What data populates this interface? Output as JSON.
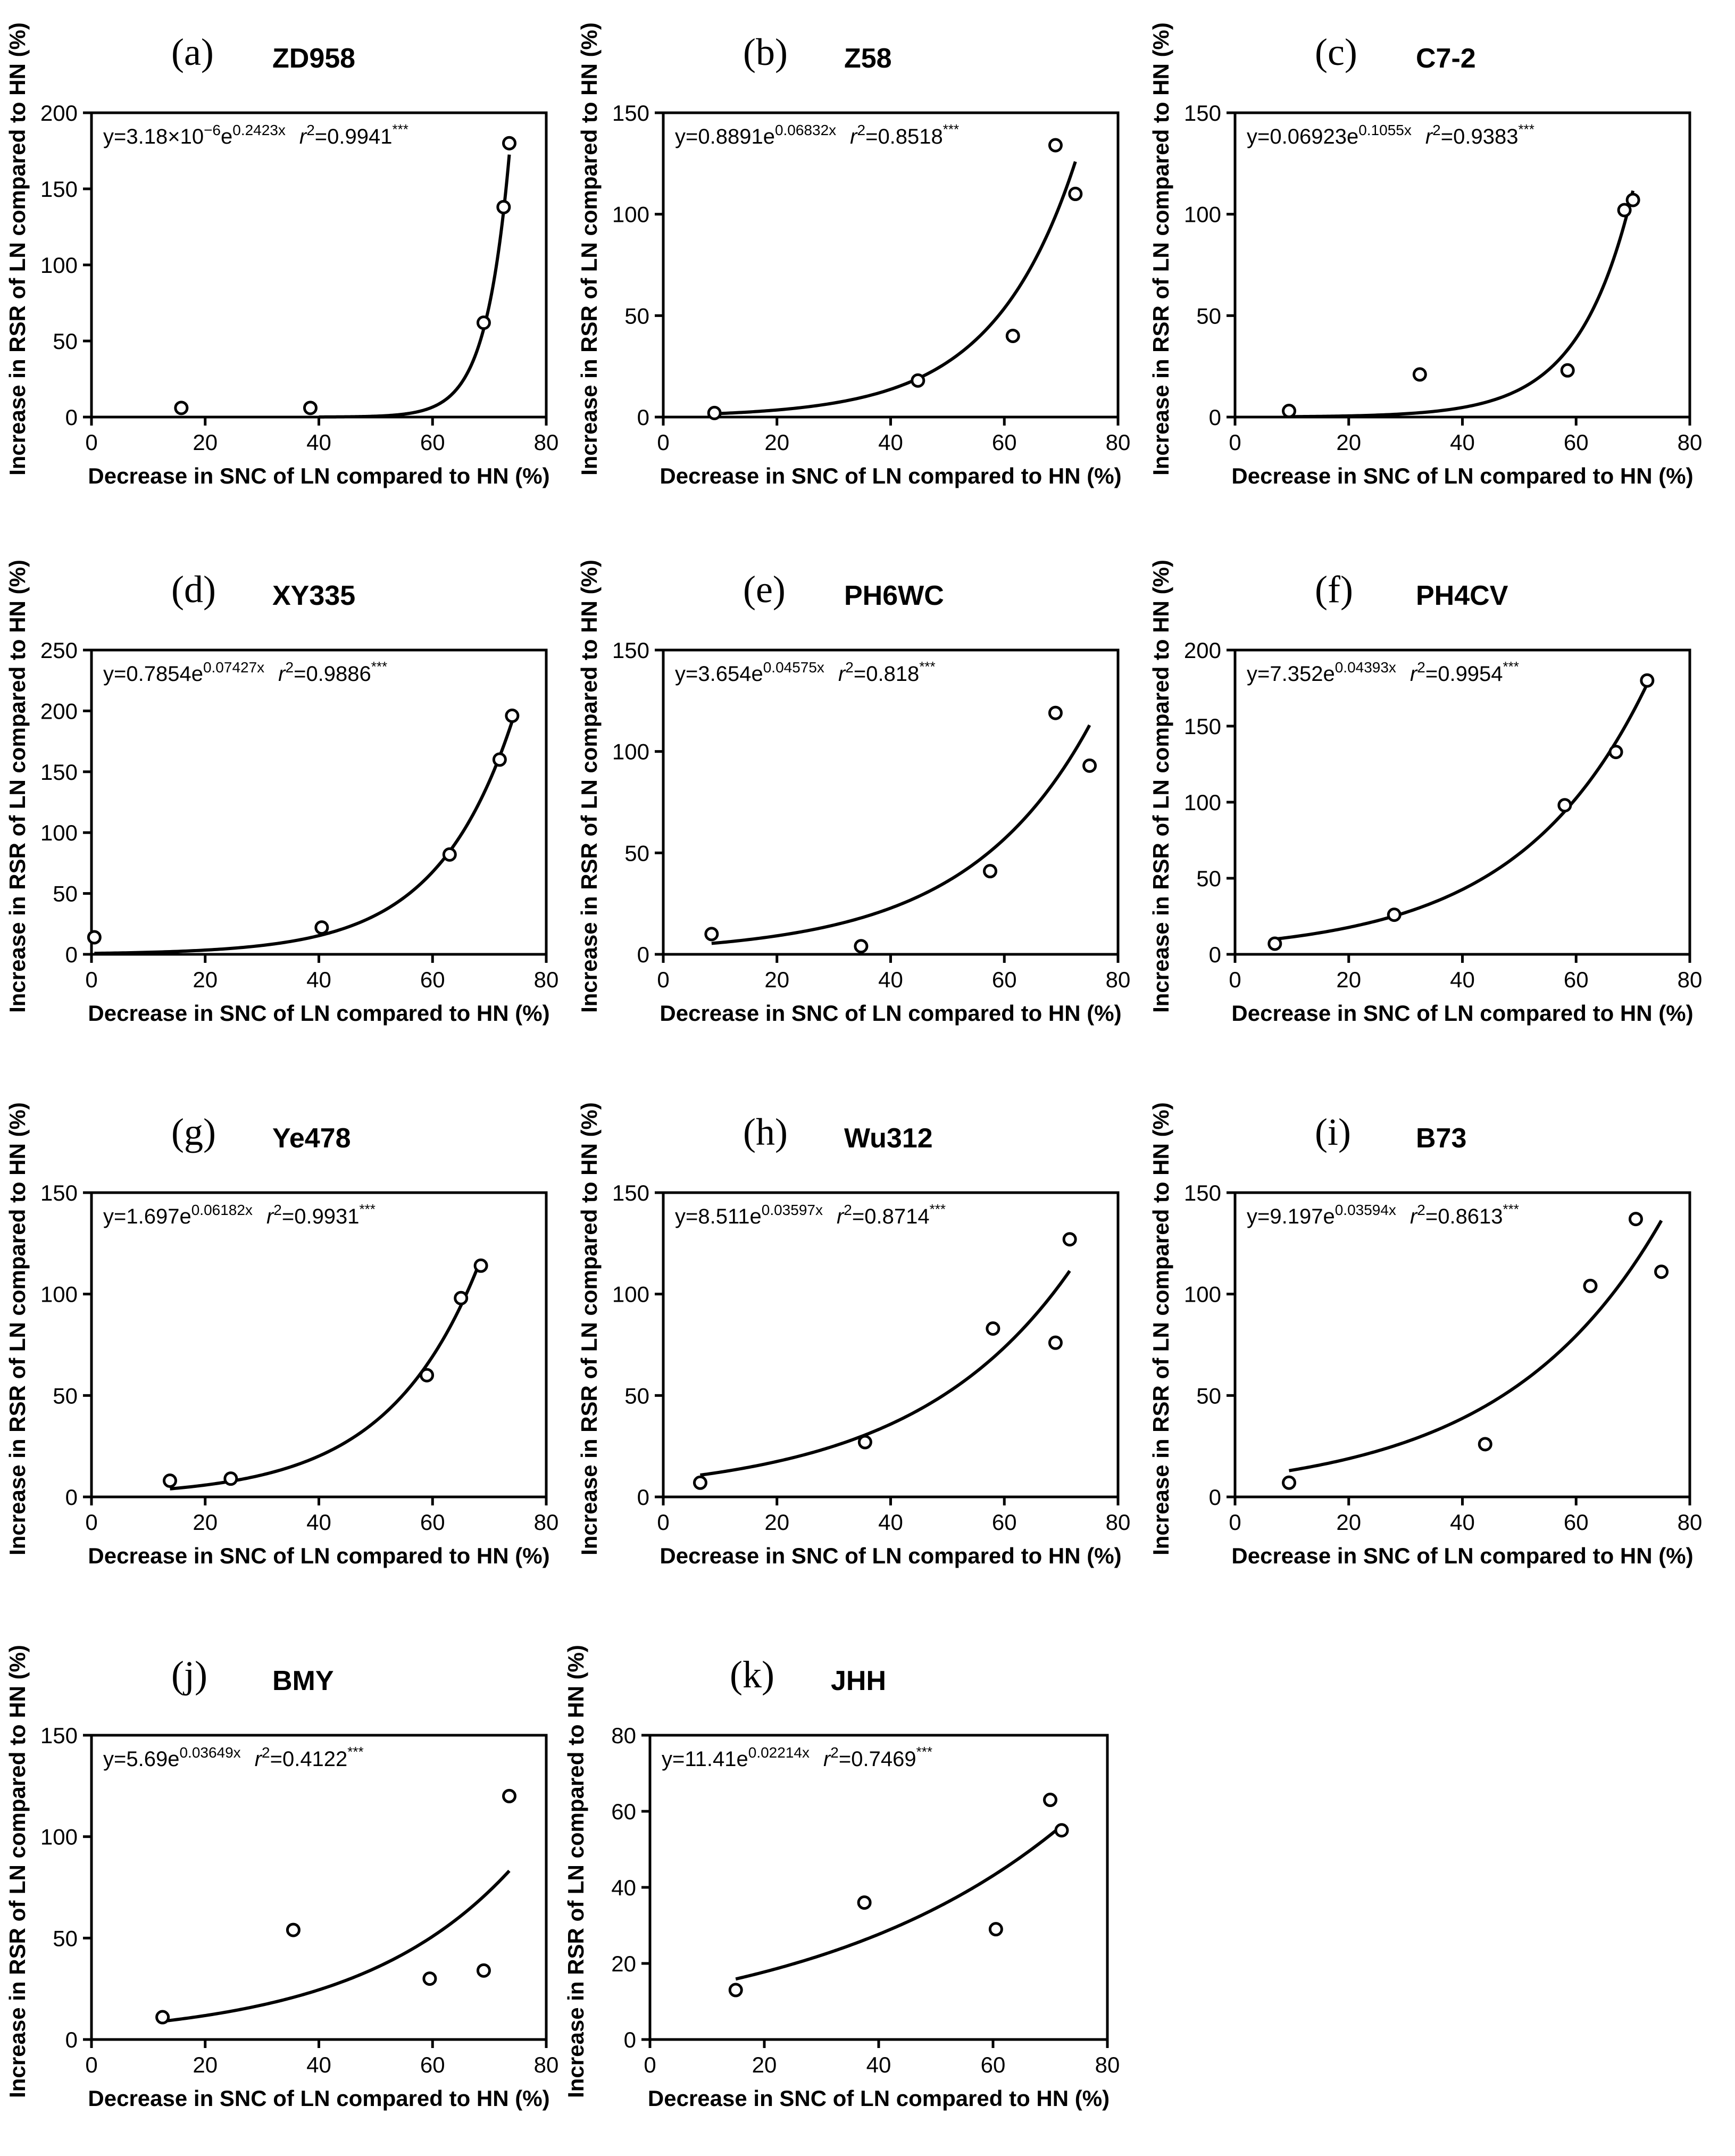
{
  "chart_data": [
    {
      "type": "scatter",
      "panel_label": "(a)",
      "title": "ZD958",
      "xlabel": "Decrease in SNC of LN compared to HN (%)",
      "ylabel": "Increase in RSR of LN compared to HN (%)",
      "xlim": [
        0,
        80
      ],
      "ylim": [
        0,
        200
      ],
      "xticks": [
        0,
        20,
        40,
        60,
        80
      ],
      "yticks": [
        0,
        50,
        100,
        150,
        200
      ],
      "points": [
        {
          "x": 15.8,
          "y": 6
        },
        {
          "x": 38.5,
          "y": 6
        },
        {
          "x": 69.0,
          "y": 62
        },
        {
          "x": 72.5,
          "y": 138
        },
        {
          "x": 73.5,
          "y": 180
        }
      ],
      "fit": {
        "a": 3.18e-06,
        "b": 0.2423,
        "x_range": [
          40,
          73.5
        ]
      },
      "equation_parts": {
        "lhs": "y=",
        "coef_base": "3.18×10",
        "coef_exp": "−6",
        "e": "e",
        "rate_exp": "0.2423x",
        "r": "r",
        "r_exp": "2",
        "r_value": "=0.9941",
        "sig": "***"
      }
    },
    {
      "type": "scatter",
      "panel_label": "(b)",
      "title": "Z58",
      "xlabel": "Decrease in SNC of LN compared to HN (%)",
      "ylabel": "Increase in RSR of LN compared to HN (%)",
      "xlim": [
        0,
        80
      ],
      "ylim": [
        0,
        150
      ],
      "xticks": [
        0,
        20,
        40,
        60,
        80
      ],
      "yticks": [
        0,
        50,
        100,
        150
      ],
      "points": [
        {
          "x": 9.0,
          "y": 2
        },
        {
          "x": 44.8,
          "y": 18
        },
        {
          "x": 61.5,
          "y": 40
        },
        {
          "x": 69.0,
          "y": 134
        },
        {
          "x": 72.5,
          "y": 110
        }
      ],
      "fit": {
        "a": 0.8891,
        "b": 0.06832,
        "x_range": [
          9.0,
          72.5
        ]
      },
      "equation_parts": {
        "lhs": "y=0.8891",
        "coef_base": "",
        "coef_exp": "",
        "e": "e",
        "rate_exp": "0.06832x",
        "r": "r",
        "r_exp": "2",
        "r_value": "=0.8518",
        "sig": "***"
      }
    },
    {
      "type": "scatter",
      "panel_label": "(c)",
      "title": "C7-2",
      "xlabel": "Decrease in SNC of LN compared to HN (%)",
      "ylabel": "Increase in RSR of LN compared to HN (%)",
      "xlim": [
        0,
        80
      ],
      "ylim": [
        0,
        150
      ],
      "xticks": [
        0,
        20,
        40,
        60,
        80
      ],
      "yticks": [
        0,
        50,
        100,
        150
      ],
      "points": [
        {
          "x": 9.5,
          "y": 3
        },
        {
          "x": 32.5,
          "y": 21
        },
        {
          "x": 58.5,
          "y": 23
        },
        {
          "x": 68.5,
          "y": 102
        },
        {
          "x": 70.0,
          "y": 107
        }
      ],
      "fit": {
        "a": 0.06923,
        "b": 0.1055,
        "x_range": [
          9.5,
          70.0
        ]
      },
      "equation_parts": {
        "lhs": "y=0.06923",
        "coef_base": "",
        "coef_exp": "",
        "e": "e",
        "rate_exp": "0.1055x",
        "r": "r",
        "r_exp": "2",
        "r_value": "=0.9383",
        "sig": "***"
      }
    },
    {
      "type": "scatter",
      "panel_label": "(d)",
      "title": "XY335",
      "xlabel": "Decrease in SNC of LN compared to HN (%)",
      "ylabel": "Increase in RSR of LN compared to HN (%)",
      "xlim": [
        0,
        80
      ],
      "ylim": [
        0,
        250
      ],
      "xticks": [
        0,
        20,
        40,
        60,
        80
      ],
      "yticks": [
        0,
        50,
        100,
        150,
        200,
        250
      ],
      "points": [
        {
          "x": 0.5,
          "y": 14
        },
        {
          "x": 40.5,
          "y": 22
        },
        {
          "x": 63.0,
          "y": 82
        },
        {
          "x": 71.8,
          "y": 160
        },
        {
          "x": 74.0,
          "y": 196
        }
      ],
      "fit": {
        "a": 0.7854,
        "b": 0.07427,
        "x_range": [
          0.5,
          74.0
        ]
      },
      "equation_parts": {
        "lhs": "y=0.7854",
        "coef_base": "",
        "coef_exp": "",
        "e": "e",
        "rate_exp": "0.07427x",
        "r": "r",
        "r_exp": "2",
        "r_value": "=0.9886",
        "sig": "***"
      }
    },
    {
      "type": "scatter",
      "panel_label": "(e)",
      "title": "PH6WC",
      "xlabel": "Decrease in SNC of LN compared to HN (%)",
      "ylabel": "Increase in RSR of LN compared to HN (%)",
      "xlim": [
        0,
        80
      ],
      "ylim": [
        0,
        150
      ],
      "xticks": [
        0,
        20,
        40,
        60,
        80
      ],
      "yticks": [
        0,
        50,
        100,
        150
      ],
      "points": [
        {
          "x": 8.5,
          "y": 10
        },
        {
          "x": 34.8,
          "y": 4
        },
        {
          "x": 57.5,
          "y": 41
        },
        {
          "x": 69.0,
          "y": 119
        },
        {
          "x": 75.0,
          "y": 93
        }
      ],
      "fit": {
        "a": 3.654,
        "b": 0.04575,
        "x_range": [
          8.5,
          75.0
        ]
      },
      "equation_parts": {
        "lhs": "y=3.654",
        "coef_base": "",
        "coef_exp": "",
        "e": "e",
        "rate_exp": "0.04575x",
        "r": "r",
        "r_exp": "2",
        "r_value": "=0.818",
        "sig": "***"
      }
    },
    {
      "type": "scatter",
      "panel_label": "(f)",
      "title": "PH4CV",
      "xlabel": "Decrease in SNC of LN compared to HN (%)",
      "ylabel": "Increase in RSR of LN compared to HN (%)",
      "xlim": [
        0,
        80
      ],
      "ylim": [
        0,
        200
      ],
      "xticks": [
        0,
        20,
        40,
        60,
        80
      ],
      "yticks": [
        0,
        50,
        100,
        150,
        200
      ],
      "points": [
        {
          "x": 7.0,
          "y": 7
        },
        {
          "x": 28.0,
          "y": 26
        },
        {
          "x": 58.0,
          "y": 98
        },
        {
          "x": 67.0,
          "y": 133
        },
        {
          "x": 72.5,
          "y": 180
        }
      ],
      "fit": {
        "a": 7.352,
        "b": 0.04393,
        "x_range": [
          7.0,
          72.5
        ]
      },
      "equation_parts": {
        "lhs": "y=7.352",
        "coef_base": "",
        "coef_exp": "",
        "e": "e",
        "rate_exp": "0.04393x",
        "r": "r",
        "r_exp": "2",
        "r_value": "=0.9954",
        "sig": "***"
      }
    },
    {
      "type": "scatter",
      "panel_label": "(g)",
      "title": "Ye478",
      "xlabel": "Decrease in SNC of LN compared to HN (%)",
      "ylabel": "Increase in RSR of LN compared to HN (%)",
      "xlim": [
        0,
        80
      ],
      "ylim": [
        0,
        150
      ],
      "xticks": [
        0,
        20,
        40,
        60,
        80
      ],
      "yticks": [
        0,
        50,
        100,
        150
      ],
      "points": [
        {
          "x": 13.8,
          "y": 8
        },
        {
          "x": 24.5,
          "y": 9
        },
        {
          "x": 59.0,
          "y": 60
        },
        {
          "x": 65.0,
          "y": 98
        },
        {
          "x": 68.5,
          "y": 114
        }
      ],
      "fit": {
        "a": 1.697,
        "b": 0.06182,
        "x_range": [
          13.8,
          68.5
        ]
      },
      "equation_parts": {
        "lhs": "y=1.697",
        "coef_base": "",
        "coef_exp": "",
        "e": "e",
        "rate_exp": "0.06182x",
        "r": "r",
        "r_exp": "2",
        "r_value": "=0.9931",
        "sig": "***"
      }
    },
    {
      "type": "scatter",
      "panel_label": "(h)",
      "title": "Wu312",
      "xlabel": "Decrease in SNC of LN compared to HN (%)",
      "ylabel": "Increase in RSR of LN compared to HN (%)",
      "xlim": [
        0,
        80
      ],
      "ylim": [
        0,
        150
      ],
      "xticks": [
        0,
        20,
        40,
        60,
        80
      ],
      "yticks": [
        0,
        50,
        100,
        150
      ],
      "points": [
        {
          "x": 6.5,
          "y": 7
        },
        {
          "x": 35.5,
          "y": 27
        },
        {
          "x": 58.0,
          "y": 83
        },
        {
          "x": 69.0,
          "y": 76
        },
        {
          "x": 71.5,
          "y": 127
        }
      ],
      "fit": {
        "a": 8.511,
        "b": 0.03597,
        "x_range": [
          6.5,
          71.5
        ]
      },
      "equation_parts": {
        "lhs": "y=8.511",
        "coef_base": "",
        "coef_exp": "",
        "e": "e",
        "rate_exp": "0.03597x",
        "r": "r",
        "r_exp": "2",
        "r_value": "=0.8714",
        "sig": "***"
      }
    },
    {
      "type": "scatter",
      "panel_label": "(i)",
      "title": "B73",
      "xlabel": "Decrease in SNC of LN compared to HN (%)",
      "ylabel": "Increase in RSR of LN compared to HN (%)",
      "xlim": [
        0,
        80
      ],
      "ylim": [
        0,
        150
      ],
      "xticks": [
        0,
        20,
        40,
        60,
        80
      ],
      "yticks": [
        0,
        50,
        100,
        150
      ],
      "points": [
        {
          "x": 9.5,
          "y": 7
        },
        {
          "x": 44.0,
          "y": 26
        },
        {
          "x": 62.5,
          "y": 104
        },
        {
          "x": 70.5,
          "y": 137
        },
        {
          "x": 75.0,
          "y": 111
        }
      ],
      "fit": {
        "a": 9.197,
        "b": 0.03594,
        "x_range": [
          9.5,
          75.0
        ]
      },
      "equation_parts": {
        "lhs": "y=9.197",
        "coef_base": "",
        "coef_exp": "",
        "e": "e",
        "rate_exp": "0.03594x",
        "r": "r",
        "r_exp": "2",
        "r_value": "=0.8613",
        "sig": "***"
      }
    },
    {
      "type": "scatter",
      "panel_label": "(j)",
      "title": "BMY",
      "xlabel": "Decrease in SNC of LN compared to HN (%)",
      "ylabel": "Increase in RSR of LN compared to HN (%)",
      "xlim": [
        0,
        80
      ],
      "ylim": [
        0,
        150
      ],
      "xticks": [
        0,
        20,
        40,
        60,
        80
      ],
      "yticks": [
        0,
        50,
        100,
        150
      ],
      "points": [
        {
          "x": 12.5,
          "y": 11
        },
        {
          "x": 35.5,
          "y": 54
        },
        {
          "x": 59.5,
          "y": 30
        },
        {
          "x": 69.0,
          "y": 34
        },
        {
          "x": 73.5,
          "y": 120
        }
      ],
      "fit": {
        "a": 5.69,
        "b": 0.03649,
        "x_range": [
          12.5,
          73.5
        ]
      },
      "equation_parts": {
        "lhs": "y=5.69",
        "coef_base": "",
        "coef_exp": "",
        "e": "e",
        "rate_exp": "0.03649x",
        "r": "r",
        "r_exp": "2",
        "r_value": "=0.4122",
        "sig": "***"
      }
    },
    {
      "type": "scatter",
      "panel_label": "(k)",
      "title": "JHH",
      "xlabel": "Decrease in SNC of LN compared to HN (%)",
      "ylabel": "Increase in RSR of LN compared to HN (%)",
      "xlim": [
        0,
        80
      ],
      "ylim": [
        0,
        80
      ],
      "xticks": [
        0,
        20,
        40,
        60,
        80
      ],
      "yticks": [
        0,
        20,
        40,
        60,
        80
      ],
      "points": [
        {
          "x": 15.0,
          "y": 13
        },
        {
          "x": 37.5,
          "y": 36
        },
        {
          "x": 60.5,
          "y": 29
        },
        {
          "x": 70.0,
          "y": 63
        },
        {
          "x": 72.0,
          "y": 55
        }
      ],
      "fit": {
        "a": 11.41,
        "b": 0.02214,
        "x_range": [
          15.0,
          72.0
        ]
      },
      "equation_parts": {
        "lhs": "y=11.41",
        "coef_base": "",
        "coef_exp": "",
        "e": "e",
        "rate_exp": "0.02214x",
        "r": "r",
        "r_exp": "2",
        "r_value": "=0.7469",
        "sig": "***"
      }
    }
  ]
}
